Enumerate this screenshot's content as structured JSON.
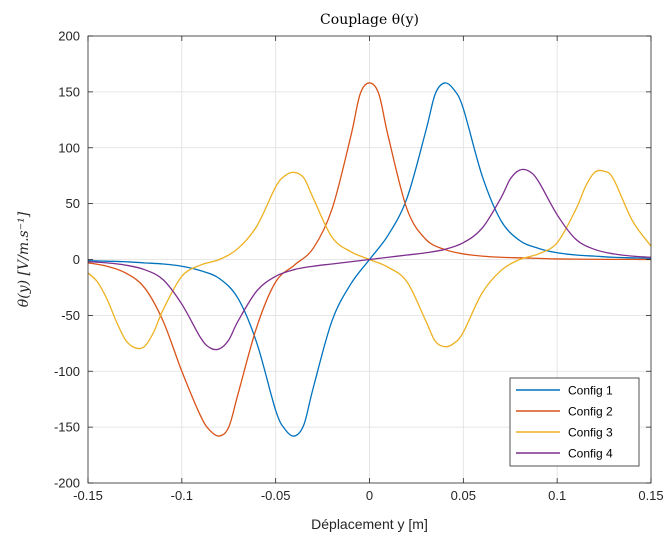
{
  "chart_data": {
    "type": "line",
    "title": "Couplage θ(y)",
    "xlabel": "Déplacement y [m]",
    "ylabel": "θ(y) [V/m.s⁻¹]",
    "xlim": [
      -0.15,
      0.15
    ],
    "ylim": [
      -200,
      200
    ],
    "xticks": [
      -0.15,
      -0.1,
      -0.05,
      0,
      0.05,
      0.1,
      0.15
    ],
    "xtick_labels": [
      "-0.15",
      "-0.1",
      "-0.05",
      "0",
      "0.05",
      "0.1",
      "0.15"
    ],
    "yticks": [
      -200,
      -150,
      -100,
      -50,
      0,
      50,
      100,
      150,
      200
    ],
    "ytick_labels": [
      "-200",
      "-150",
      "-100",
      "-50",
      "0",
      "50",
      "100",
      "150",
      "200"
    ],
    "grid": true,
    "legend_position": "bottom-right",
    "series": [
      {
        "name": "Config 1",
        "color": "#0072BD",
        "x": [
          -0.15,
          -0.14,
          -0.13,
          -0.12,
          -0.11,
          -0.1,
          -0.09,
          -0.08,
          -0.07,
          -0.06,
          -0.05,
          -0.045,
          -0.04,
          -0.035,
          -0.03,
          -0.02,
          -0.01,
          0,
          0.01,
          0.02,
          0.03,
          0.035,
          0.04,
          0.045,
          0.05,
          0.06,
          0.07,
          0.08,
          0.09,
          0.1,
          0.11,
          0.12,
          0.13,
          0.14,
          0.15
        ],
        "y": [
          -1,
          -1.5,
          -2,
          -3,
          -4,
          -6,
          -10,
          -17,
          -35,
          -75,
          -135,
          -152,
          -158,
          -148,
          -115,
          -55,
          -22,
          0,
          22,
          55,
          115,
          148,
          158,
          152,
          135,
          75,
          35,
          17,
          10,
          6,
          4,
          3,
          2,
          1.5,
          1
        ]
      },
      {
        "name": "Config 2",
        "color": "#D95319",
        "x": [
          -0.15,
          -0.14,
          -0.13,
          -0.12,
          -0.11,
          -0.1,
          -0.09,
          -0.085,
          -0.08,
          -0.075,
          -0.07,
          -0.06,
          -0.05,
          -0.04,
          -0.03,
          -0.02,
          -0.01,
          -0.005,
          0,
          0.005,
          0.01,
          0.02,
          0.03,
          0.04,
          0.05,
          0.06,
          0.07,
          0.08,
          0.09,
          0.1,
          0.11,
          0.12,
          0.13,
          0.14,
          0.15
        ],
        "y": [
          -3,
          -6,
          -12,
          -25,
          -55,
          -100,
          -140,
          -153,
          -158,
          -150,
          -120,
          -60,
          -20,
          -5,
          10,
          45,
          110,
          148,
          158,
          148,
          110,
          45,
          18,
          9,
          5,
          3,
          2,
          1.5,
          1,
          0.5,
          0.3,
          0.2,
          0.1,
          0.1,
          0
        ]
      },
      {
        "name": "Config 3",
        "color": "#EDB120",
        "x": [
          -0.15,
          -0.145,
          -0.14,
          -0.135,
          -0.13,
          -0.125,
          -0.12,
          -0.115,
          -0.11,
          -0.1,
          -0.09,
          -0.08,
          -0.07,
          -0.06,
          -0.05,
          -0.045,
          -0.04,
          -0.035,
          -0.03,
          -0.02,
          -0.01,
          0,
          0.01,
          0.02,
          0.03,
          0.035,
          0.04,
          0.045,
          0.05,
          0.06,
          0.07,
          0.08,
          0.09,
          0.1,
          0.11,
          0.115,
          0.12,
          0.125,
          0.13,
          0.14,
          0.15
        ],
        "y": [
          -12,
          -20,
          -35,
          -55,
          -72,
          -79,
          -78,
          -65,
          -45,
          -15,
          -5,
          0,
          10,
          30,
          65,
          75,
          78,
          73,
          55,
          20,
          7,
          0,
          -7,
          -20,
          -55,
          -73,
          -78,
          -75,
          -65,
          -30,
          -10,
          0,
          5,
          15,
          45,
          65,
          78,
          79,
          72,
          35,
          12
        ]
      },
      {
        "name": "Config 4",
        "color": "#7E2F8E",
        "x": [
          -0.15,
          -0.14,
          -0.13,
          -0.12,
          -0.11,
          -0.1,
          -0.09,
          -0.085,
          -0.08,
          -0.075,
          -0.07,
          -0.06,
          -0.05,
          -0.04,
          -0.03,
          -0.02,
          -0.01,
          0,
          0.01,
          0.02,
          0.03,
          0.04,
          0.05,
          0.06,
          0.07,
          0.075,
          0.08,
          0.085,
          0.09,
          0.1,
          0.11,
          0.12,
          0.13,
          0.14,
          0.15
        ],
        "y": [
          -2,
          -3,
          -5,
          -9,
          -18,
          -40,
          -70,
          -79,
          -80,
          -72,
          -55,
          -28,
          -15,
          -9,
          -6,
          -4,
          -2,
          0,
          2,
          4,
          6,
          9,
          15,
          28,
          55,
          72,
          80,
          79,
          70,
          40,
          18,
          9,
          5,
          3,
          2
        ]
      }
    ]
  }
}
